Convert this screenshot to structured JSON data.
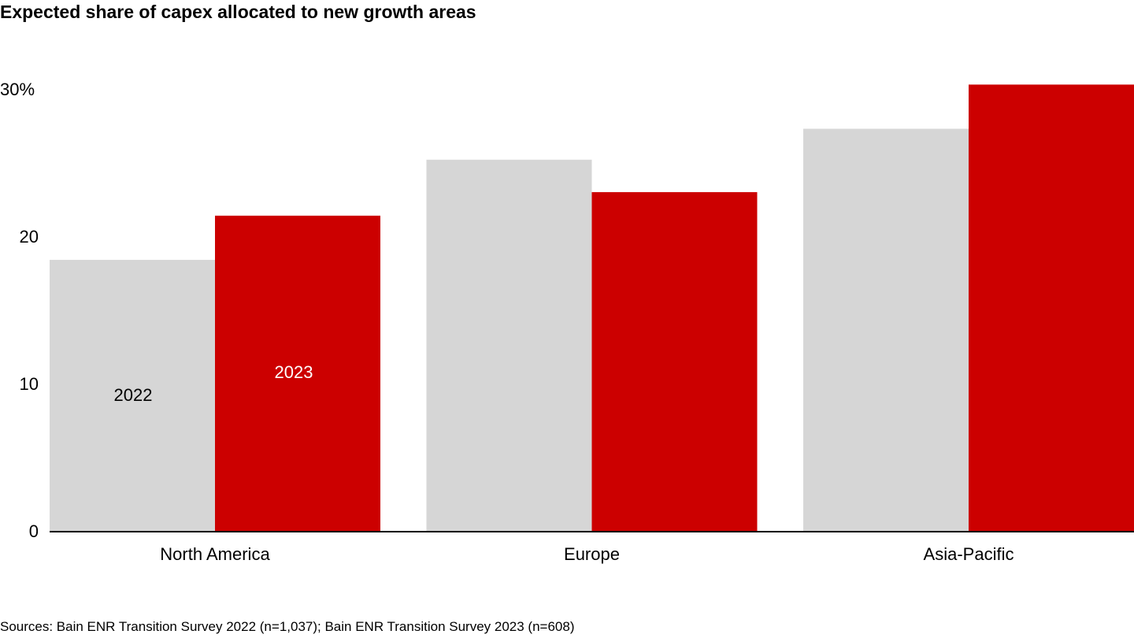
{
  "chart_data": {
    "type": "bar",
    "title": "Expected share of capex allocated to new growth areas",
    "categories": [
      "North America",
      "Europe",
      "Asia-Pacific"
    ],
    "series": [
      {
        "name": "2022",
        "values": [
          18.4,
          25.2,
          27.3
        ],
        "color": "#d6d6d6",
        "label_color": "#000000"
      },
      {
        "name": "2023",
        "values": [
          21.4,
          23.0,
          30.3
        ],
        "color": "#cc0000",
        "label_color": "#ffffff"
      }
    ],
    "yticks": [
      "0",
      "10",
      "20",
      "30%"
    ],
    "ytick_values": [
      0,
      10,
      20,
      30
    ],
    "ylim": [
      0,
      30.5
    ],
    "grid": false,
    "legend": "inline labels inside North America bars",
    "source": "Sources: Bain ENR Transition Survey 2022 (n=1,037); Bain ENR Transition Survey 2023 (n=608)"
  }
}
